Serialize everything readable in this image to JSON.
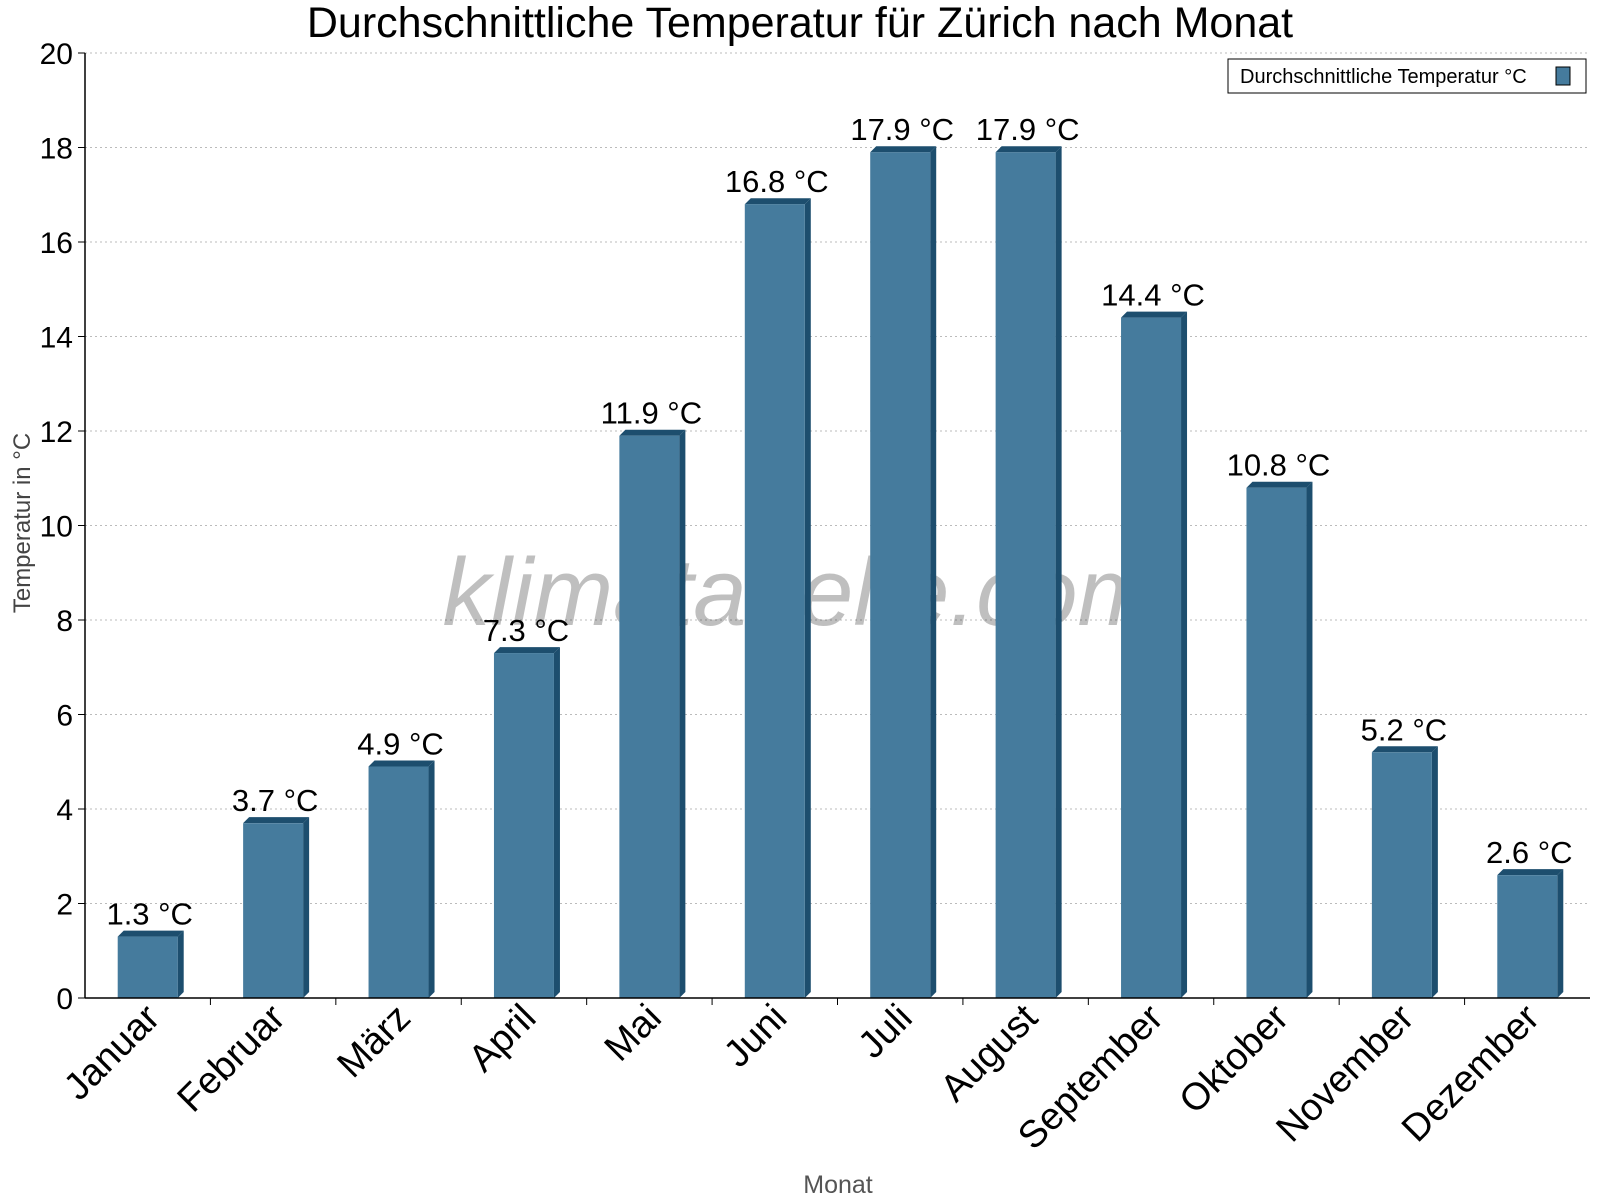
{
  "chart_data": {
    "type": "bar",
    "title": "Durchschnittliche Temperatur für Zürich nach Monat",
    "xlabel": "Monat",
    "ylabel": "Temperatur in °C",
    "ylim": [
      0,
      20
    ],
    "ytick_step": 2,
    "grid": true,
    "legend_position": "top-right",
    "categories": [
      "Januar",
      "Februar",
      "März",
      "April",
      "Mai",
      "Juni",
      "Juli",
      "August",
      "September",
      "Oktober",
      "November",
      "Dezember"
    ],
    "series": [
      {
        "name": "Durchschnittliche Temperatur °C",
        "values": [
          1.3,
          3.7,
          4.9,
          7.3,
          11.9,
          16.8,
          17.9,
          17.9,
          14.4,
          10.8,
          5.2,
          2.6
        ],
        "labels": [
          "1.3 °C",
          "3.7 °C",
          "4.9 °C",
          "7.3 °C",
          "11.9 °C",
          "16.8 °C",
          "17.9 °C",
          "17.9 °C",
          "14.4 °C",
          "10.8 °C",
          "5.2 °C",
          "2.6 °C"
        ],
        "color": "#457b9d",
        "shade_color": "#1d4e6e"
      }
    ],
    "watermark": "klimatabelle.com"
  }
}
